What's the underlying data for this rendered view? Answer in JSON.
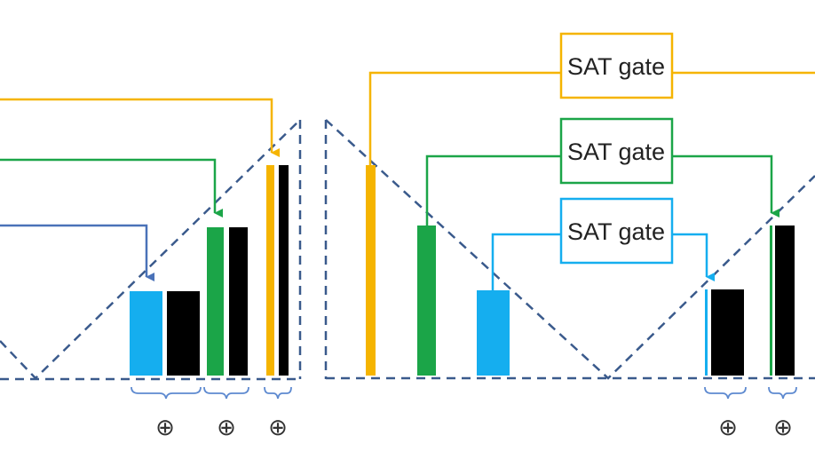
{
  "colors": {
    "yellow": "#f5b400",
    "green": "#1ba548",
    "cyan": "#15aeef",
    "blue": "#4a72b8",
    "black": "#000000",
    "dash": "#3a5a8c",
    "brace": "#5e8ad0"
  },
  "gates": [
    {
      "label": "SAT gate",
      "color": "#f5b400"
    },
    {
      "label": "SAT gate",
      "color": "#1ba548"
    },
    {
      "label": "SAT gate",
      "color": "#15aeef"
    }
  ],
  "xor_symbol": "⊕"
}
